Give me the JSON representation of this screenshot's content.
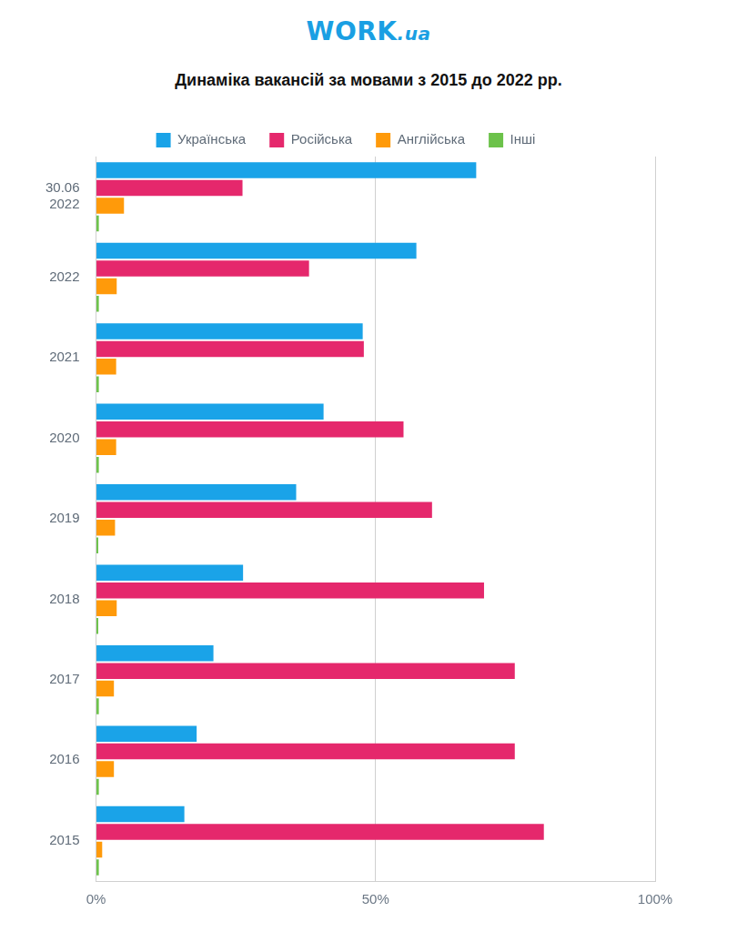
{
  "header": {
    "logo": "WORK.ua"
  },
  "chart_data": {
    "type": "bar",
    "orientation": "horizontal",
    "title": "Динаміка вакансій за мовами з 2015 до 2022 рр.",
    "categories": [
      "30.06\n2022",
      "2022",
      "2021",
      "2020",
      "2019",
      "2018",
      "2017",
      "2016",
      "2015"
    ],
    "series": [
      {
        "name": "Українська",
        "color": "#1aa3e8",
        "values": [
          68.0,
          57.3,
          47.7,
          40.7,
          35.8,
          26.3,
          21.0,
          18.0,
          15.8
        ]
      },
      {
        "name": "Російська",
        "color": "#e5286c",
        "values": [
          26.2,
          38.1,
          47.9,
          55.0,
          60.1,
          69.4,
          74.9,
          74.9,
          80.1
        ]
      },
      {
        "name": "Англійська",
        "color": "#ff9a0a",
        "values": [
          5.0,
          3.7,
          3.6,
          3.6,
          3.4,
          3.7,
          3.2,
          3.2,
          1.1
        ]
      },
      {
        "name": "Інші",
        "color": "#6cc24a",
        "values": [
          0.5,
          0.5,
          0.5,
          0.5,
          0.4,
          0.4,
          0.5,
          0.5,
          0.5
        ]
      }
    ],
    "xlim": [
      0,
      100
    ],
    "xticks": [
      {
        "value": 0,
        "label": "0%"
      },
      {
        "value": 50,
        "label": "50%"
      },
      {
        "value": 100,
        "label": "100%"
      }
    ],
    "grid": true,
    "legend": "top"
  }
}
